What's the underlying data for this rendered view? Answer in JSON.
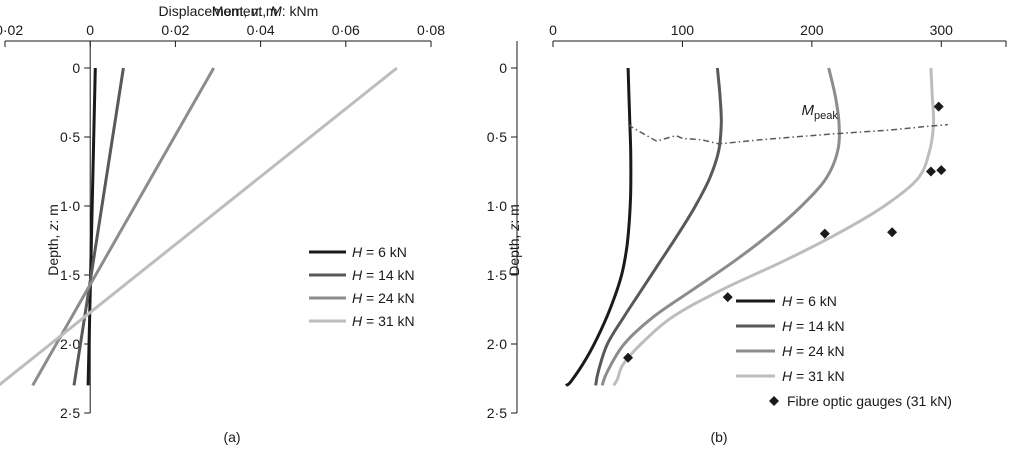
{
  "chart_data": [
    {
      "type": "line",
      "panel_label": "(a)",
      "xlabel": "Displacement, v: m",
      "ylabel": "Depth, z: m",
      "xlim": [
        -0.02,
        0.08
      ],
      "ylim": [
        0,
        2.5
      ],
      "x_ticks": [
        "−0·02",
        "0",
        "0·02",
        "0·04",
        "0·06",
        "0·08"
      ],
      "x_tick_values": [
        -0.02,
        0,
        0.02,
        0.04,
        0.06,
        0.08
      ],
      "y_ticks": [
        "0",
        "0·5",
        "1·0",
        "1·5",
        "2·0",
        "2·5"
      ],
      "y_tick_values": [
        0,
        0.5,
        1.0,
        1.5,
        2.0,
        2.5
      ],
      "legend_position": "right",
      "series": [
        {
          "name": "H = 6 kN",
          "color": "#1a1a1a",
          "x": [
            0.0012,
            -0.0005
          ],
          "y": [
            0,
            2.3
          ]
        },
        {
          "name": "H = 14 kN",
          "color": "#595959",
          "x": [
            0.0078,
            -0.0038
          ],
          "y": [
            0,
            2.3
          ]
        },
        {
          "name": "H = 24 kN",
          "color": "#8c8c8c",
          "x": [
            0.029,
            -0.0135
          ],
          "y": [
            0,
            2.3
          ]
        },
        {
          "name": "H = 31 kN",
          "color": "#bdbdbd",
          "x": [
            0.072,
            -0.0215
          ],
          "y": [
            0,
            2.3
          ]
        }
      ]
    },
    {
      "type": "line",
      "panel_label": "(b)",
      "xlabel": "Moment, M: kNm",
      "ylabel": "Depth, z: m",
      "xlim": [
        0,
        350
      ],
      "ylim": [
        0,
        2.5
      ],
      "x_ticks": [
        "0",
        "100",
        "200",
        "300"
      ],
      "x_tick_values": [
        0,
        100,
        200,
        300
      ],
      "y_ticks": [
        "0",
        "0·5",
        "1·0",
        "1·5",
        "2·0",
        "2·5"
      ],
      "y_tick_values": [
        0,
        0.5,
        1.0,
        1.5,
        2.0,
        2.5
      ],
      "legend_position": "bottom-right",
      "annotation": {
        "text": "M",
        "subscript": "peak",
        "at_x": 192,
        "at_y": 0.4
      },
      "series": [
        {
          "name": "H = 6 kN",
          "color": "#1a1a1a",
          "x": [
            58,
            59,
            60,
            60,
            59,
            57,
            53,
            46,
            37,
            26,
            14,
            10
          ],
          "y": [
            0,
            0.3,
            0.6,
            0.9,
            1.1,
            1.3,
            1.5,
            1.7,
            1.9,
            2.1,
            2.27,
            2.3
          ]
        },
        {
          "name": "H = 14 kN",
          "color": "#595959",
          "x": [
            127,
            129,
            130,
            128,
            121,
            110,
            97,
            83,
            69,
            55,
            42,
            35,
            33
          ],
          "y": [
            0,
            0.2,
            0.4,
            0.6,
            0.8,
            1.0,
            1.2,
            1.4,
            1.6,
            1.8,
            2.0,
            2.2,
            2.3
          ]
        },
        {
          "name": "H = 24 kN",
          "color": "#8c8c8c",
          "x": [
            213,
            218,
            221,
            220,
            211,
            192,
            168,
            140,
            109,
            78,
            55,
            42,
            38
          ],
          "y": [
            0,
            0.2,
            0.4,
            0.6,
            0.8,
            1.0,
            1.2,
            1.4,
            1.6,
            1.8,
            2.0,
            2.2,
            2.3
          ]
        },
        {
          "name": "H = 31 kN",
          "color": "#bdbdbd",
          "x": [
            292,
            293,
            294,
            291,
            282,
            256,
            220,
            178,
            132,
            93,
            68,
            54,
            50,
            47
          ],
          "y": [
            0,
            0.2,
            0.4,
            0.6,
            0.8,
            1.0,
            1.2,
            1.4,
            1.6,
            1.8,
            2.0,
            2.15,
            2.25,
            2.3
          ]
        }
      ],
      "peak_line": {
        "name": "M peak",
        "color": "#595959",
        "x": [
          58,
          63,
          80,
          95,
          100,
          115,
          128,
          160,
          213,
          260,
          292,
          305
        ],
        "y": [
          0.41,
          0.44,
          0.53,
          0.49,
          0.51,
          0.52,
          0.55,
          0.52,
          0.48,
          0.45,
          0.42,
          0.41
        ]
      },
      "markers": {
        "name": "Fibre optic gauges (31 kN)",
        "color": "#1a1a1a",
        "x": [
          298,
          292,
          300,
          210,
          262,
          135,
          58
        ],
        "y": [
          0.28,
          0.75,
          0.74,
          1.2,
          1.19,
          1.66,
          2.1
        ]
      }
    }
  ]
}
